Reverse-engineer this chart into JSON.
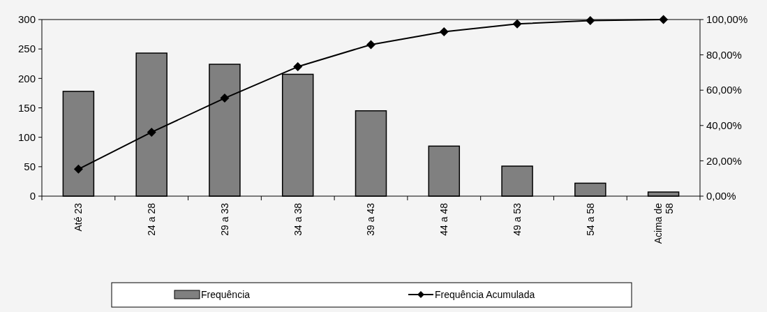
{
  "chart_data": {
    "type": "bar",
    "categories": [
      "Até 23",
      "24 a 28",
      "29 a 33",
      "34 a 38",
      "39 a 43",
      "44 a 48",
      "49 a 53",
      "54 a 58",
      "Acima de 58"
    ],
    "series": [
      {
        "name": "Frequência",
        "color": "#808080",
        "values": [
          178,
          243,
          224,
          207,
          145,
          85,
          51,
          22,
          7
        ]
      },
      {
        "name": "Frequência Acumulada",
        "type": "line",
        "axis": "y2",
        "color": "#000000",
        "marker": "diamond",
        "values": [
          15.3,
          36.2,
          55.5,
          73.3,
          85.8,
          93.1,
          97.5,
          99.4,
          100
        ]
      }
    ],
    "ylim": [
      0,
      300
    ],
    "yticks": [
      0,
      50,
      100,
      150,
      200,
      250,
      300
    ],
    "y2lim": [
      0,
      100
    ],
    "y2ticks": [
      {
        "value": 0,
        "label": "0,00%"
      },
      {
        "value": 20,
        "label": "20,00%"
      },
      {
        "value": 40,
        "label": "40,00%"
      },
      {
        "value": 60,
        "label": "60,00%"
      },
      {
        "value": 80,
        "label": "80,00%"
      },
      {
        "value": 100,
        "label": "100,00%"
      }
    ],
    "grid": false,
    "legend": "bottom"
  }
}
